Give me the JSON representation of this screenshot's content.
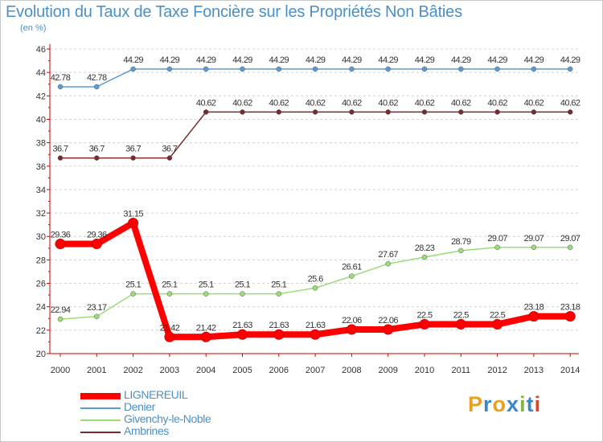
{
  "title": "Evolution du Taux de Taxe Foncière sur les Propriétés Non Bâties",
  "subtitle": "(en %)",
  "logo": {
    "text": "Proxiti",
    "colors": [
      "#e8a020",
      "#3a86c8",
      "#e8a020",
      "#3a86c8",
      "#80b840",
      "#3a86c8",
      "#e84020"
    ]
  },
  "chart_data": {
    "type": "line",
    "title": "Evolution du Taux de Taxe Foncière sur les Propriétés Non Bâties",
    "ylabel": "(en %)",
    "xlabel": "",
    "categories": [
      "2000",
      "2001",
      "2002",
      "2003",
      "2004",
      "2005",
      "2006",
      "2007",
      "2008",
      "2009",
      "2010",
      "2011",
      "2012",
      "2013",
      "2014"
    ],
    "ylim": [
      20,
      46
    ],
    "yticks": [
      20,
      22,
      24,
      26,
      28,
      30,
      32,
      34,
      36,
      38,
      40,
      42,
      44,
      46
    ],
    "grid": "horizontal dashed",
    "legend_position": "bottom-left",
    "series": [
      {
        "name": "LIGNEREUIL",
        "color": "#ff0000",
        "values": [
          29.36,
          29.36,
          31.15,
          21.42,
          21.42,
          21.63,
          21.63,
          21.63,
          22.06,
          22.06,
          22.5,
          22.5,
          22.5,
          23.18,
          23.18
        ],
        "labels": [
          "29.36",
          "29.36",
          "31.15",
          "21.42",
          "21.42",
          "21.63",
          "21.63",
          "21.63",
          "22.06",
          "22.06",
          "22.5",
          "22.5",
          "22.5",
          "23.18",
          "23.18"
        ]
      },
      {
        "name": "Denier",
        "color": "#5b9bd5",
        "values": [
          42.78,
          42.78,
          44.29,
          44.29,
          44.29,
          44.29,
          44.29,
          44.29,
          44.29,
          44.29,
          44.29,
          44.29,
          44.29,
          44.29,
          44.29
        ],
        "labels": [
          "42.78",
          "42.78",
          "44.29",
          "44.29",
          "44.29",
          "44.29",
          "44.29",
          "44.29",
          "44.29",
          "44.29",
          "44.29",
          "44.29",
          "44.29",
          "44.29",
          "44.29"
        ]
      },
      {
        "name": "Givenchy-le-Noble",
        "color": "#99dd77",
        "values": [
          22.94,
          23.17,
          25.1,
          25.1,
          25.1,
          25.1,
          25.1,
          25.6,
          26.61,
          27.67,
          28.23,
          28.79,
          29.07,
          29.07,
          29.07
        ],
        "labels": [
          "22.94",
          "23.17",
          "25.1",
          "25.1",
          "25.1",
          "25.1",
          "25.1",
          "25.6",
          "26.61",
          "27.67",
          "28.23",
          "28.79",
          "29.07",
          "29.07",
          "29.07"
        ]
      },
      {
        "name": "Ambrines",
        "color": "#7a2a2a",
        "values": [
          36.7,
          36.7,
          36.7,
          36.7,
          40.62,
          40.62,
          40.62,
          40.62,
          40.62,
          40.62,
          40.62,
          40.62,
          40.62,
          40.62,
          40.62
        ],
        "labels": [
          "36.7",
          "36.7",
          "36.7",
          "36.7",
          "40.62",
          "40.62",
          "40.62",
          "40.62",
          "40.62",
          "40.62",
          "40.62",
          "40.62",
          "40.62",
          "40.62",
          "40.62"
        ]
      }
    ]
  }
}
